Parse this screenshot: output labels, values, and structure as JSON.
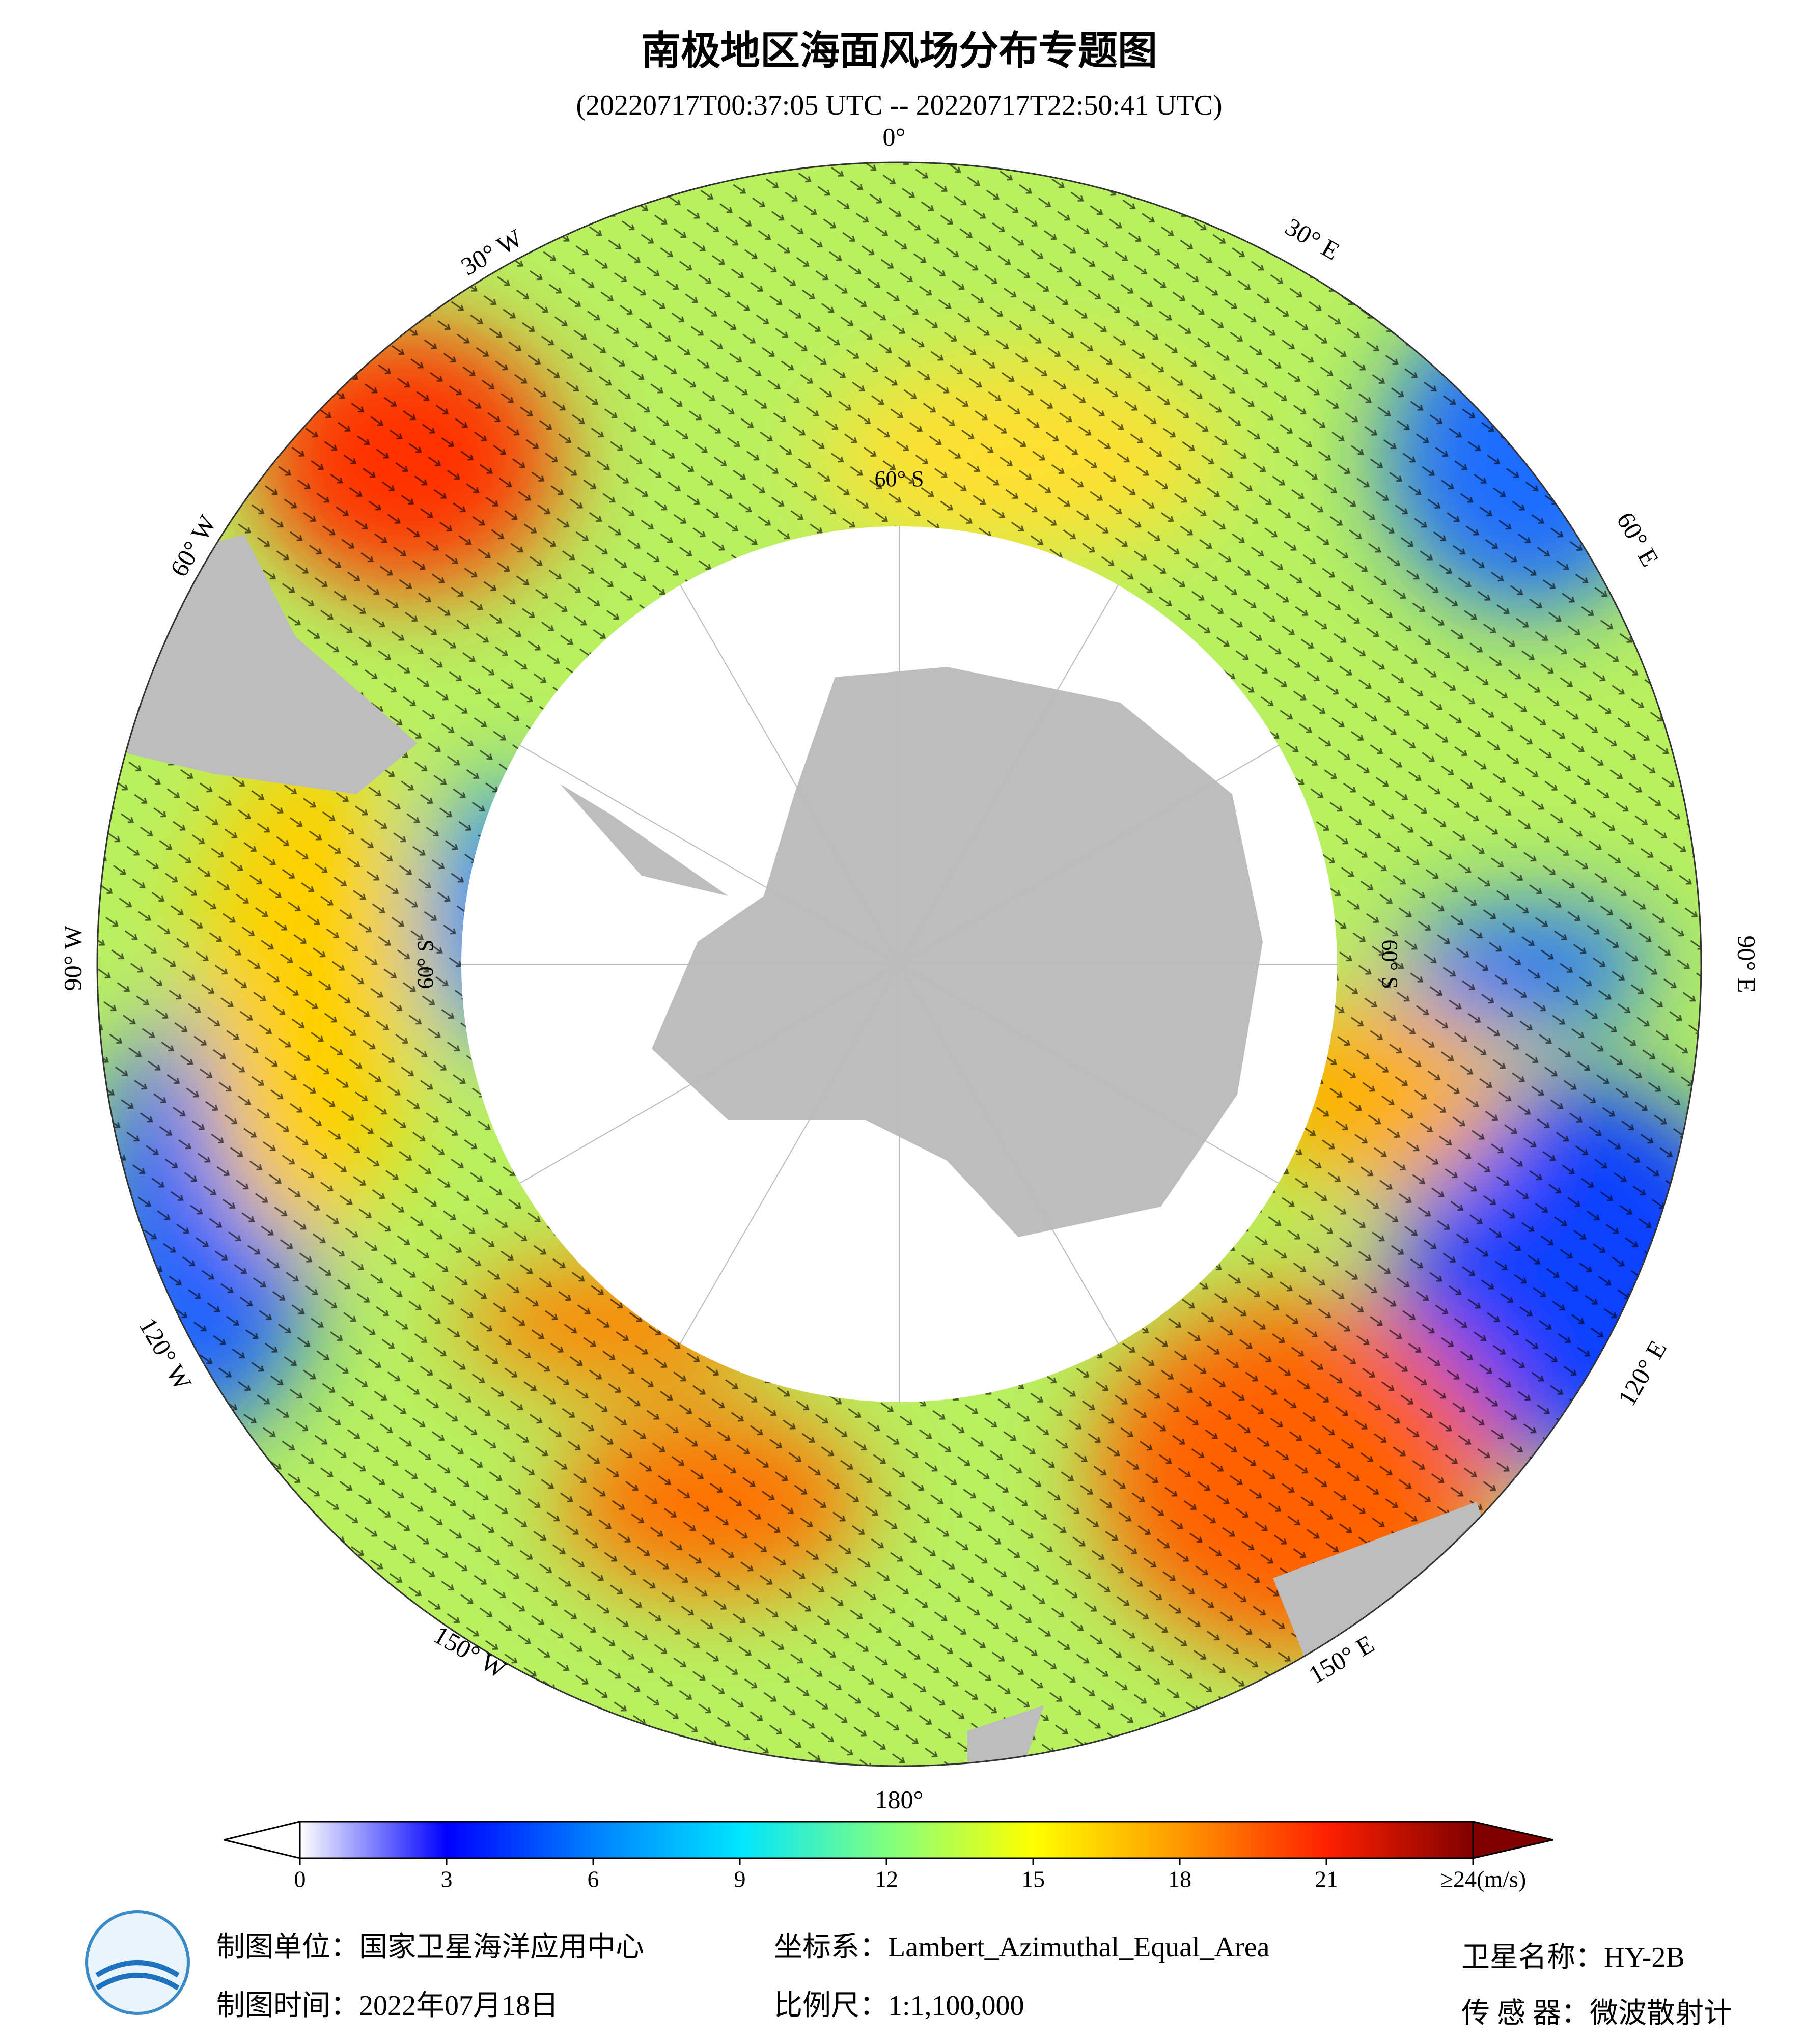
{
  "header": {
    "title": "南极地区海面风场分布专题图",
    "subtitle": "(20220717T00:37:05 UTC -- 20220717T22:50:41 UTC)"
  },
  "map": {
    "lon_labels": [
      "0°",
      "30° E",
      "60° E",
      "90° E",
      "120° E",
      "150° E",
      "180°",
      "150° W",
      "120° W",
      "90° W",
      "60° W",
      "30° W"
    ],
    "lat_labels": [
      "60° S",
      "60° S",
      "60° S"
    ]
  },
  "colorbar": {
    "lim": [
      0,
      24
    ],
    "ticks": [
      0,
      3,
      6,
      9,
      12,
      15,
      18,
      21,
      {
        "value": 24,
        "label": "≥24(m/s)"
      }
    ]
  },
  "footer": {
    "unit": "制图单位：国家卫星海洋应用中心",
    "date": "制图时间：2022年07月18日",
    "crs": "坐标系：Lambert_Azimuthal_Equal_Area",
    "scale": "比例尺：1:1,100,000",
    "satellite": "卫星名称：HY-2B",
    "sensor": "传 感 器：微波散射计"
  }
}
